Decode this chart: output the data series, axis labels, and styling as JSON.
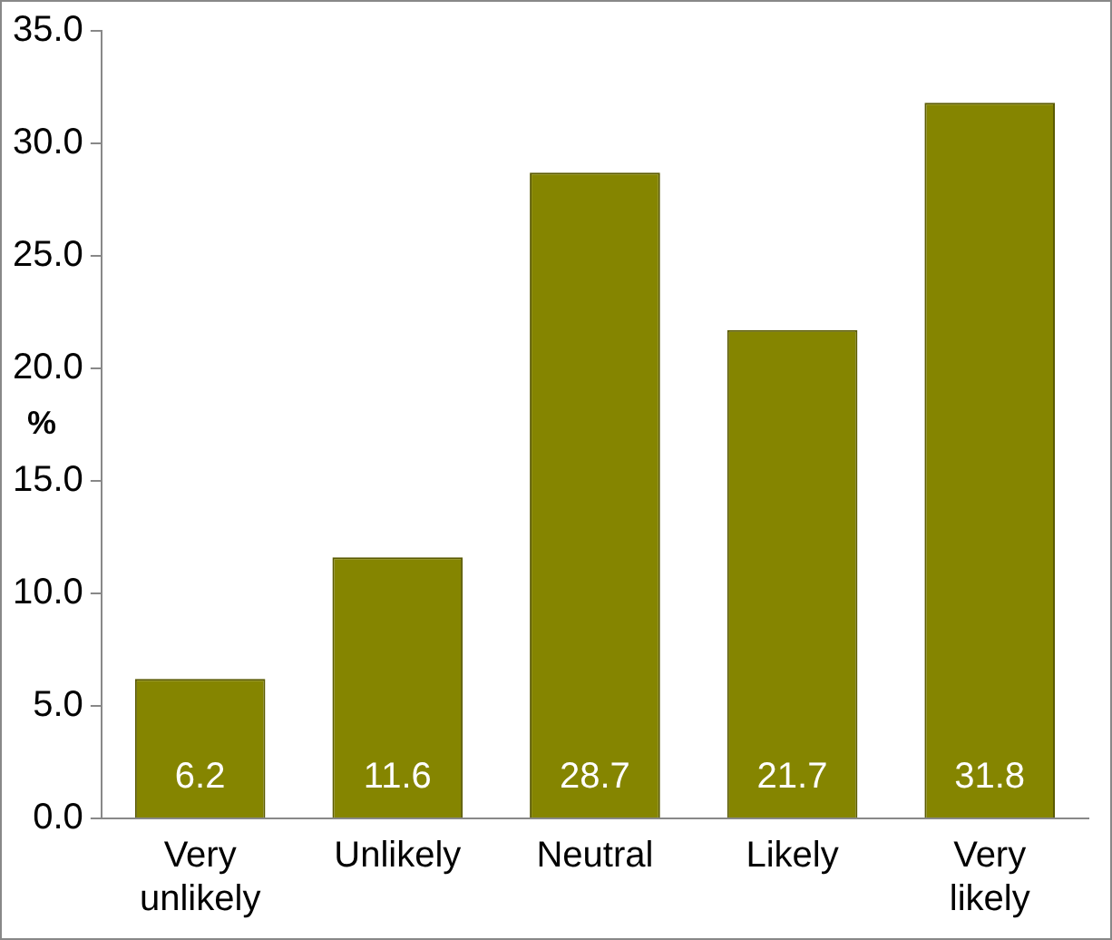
{
  "chart_data": {
    "type": "bar",
    "ylabel": "%",
    "categories": [
      "Very unlikely",
      "Unlikely",
      "Neutral",
      "Likely",
      "Very likely"
    ],
    "values": [
      6.2,
      11.6,
      28.7,
      21.7,
      31.8
    ],
    "color": "#858500",
    "ylim": [
      0,
      35
    ],
    "yticks": [
      {
        "value": 0,
        "label": "0.0"
      },
      {
        "value": 5,
        "label": "5.0"
      },
      {
        "value": 10,
        "label": "10.0"
      },
      {
        "value": 15,
        "label": "15.0"
      },
      {
        "value": 20,
        "label": "20.0"
      },
      {
        "value": 25,
        "label": "25.0"
      },
      {
        "value": 30,
        "label": "30.0"
      },
      {
        "value": 35,
        "label": "35.0"
      }
    ],
    "grid": false,
    "legend": false,
    "data_labels": true
  }
}
